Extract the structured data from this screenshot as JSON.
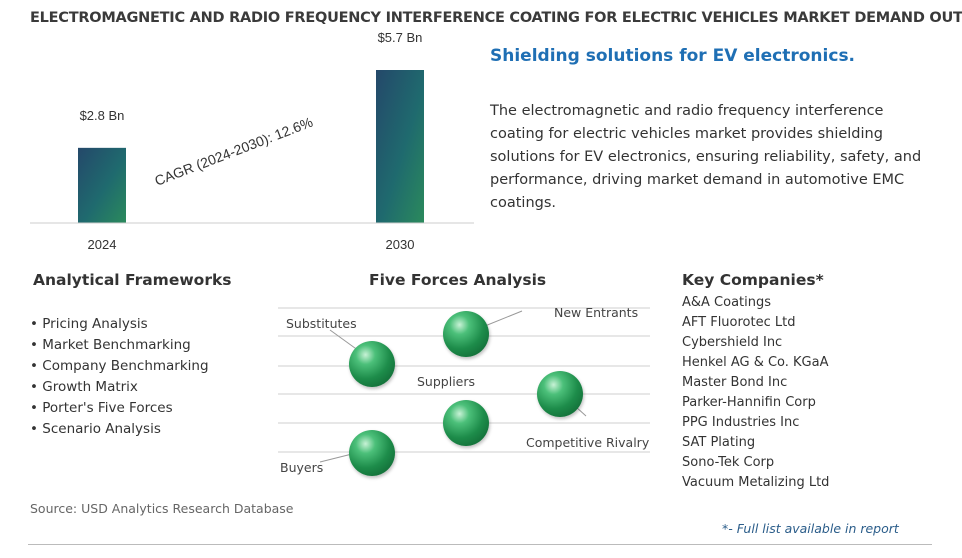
{
  "title": "ELECTROMAGNETIC AND RADIO FREQUENCY INTERFERENCE COATING FOR ELECTRIC VEHICLES MARKET DEMAND OUTLOOK",
  "chart_data": {
    "type": "bar",
    "categories": [
      "2024",
      "2030"
    ],
    "values": [
      2.8,
      5.7
    ],
    "value_labels": [
      "$2.8 Bn",
      "$5.7 Bn"
    ],
    "annotation": "CAGR (2024-2030):  12.6%",
    "bar_color": "#1f5a6e"
  },
  "summary": {
    "heading": "Shielding solutions for EV electronics.",
    "text": "The electromagnetic and radio frequency interference coating for electric vehicles market provides shielding solutions for EV electronics, ensuring reliability, safety, and performance, driving market demand in automotive EMC coatings."
  },
  "frameworks": {
    "heading": "Analytical Frameworks",
    "items": [
      "Pricing Analysis",
      "Market Benchmarking",
      "Company Benchmarking",
      "Growth Matrix",
      "Porter's Five Forces",
      "Scenario Analysis"
    ]
  },
  "five_forces": {
    "heading": "Five Forces Analysis",
    "substitutes": "Substitutes",
    "new_entrants": "New Entrants",
    "suppliers": "Suppliers",
    "competitive_rivalry": "Competitive Rivalry",
    "buyers": "Buyers"
  },
  "companies": {
    "heading": "Key Companies*",
    "items": [
      "A&A Coatings",
      "AFT Fluorotec Ltd",
      "Cybershield Inc",
      "Henkel AG & Co. KGaA",
      "Master Bond Inc",
      "Parker-Hannifin Corp",
      "PPG Industries Inc",
      "SAT Plating",
      "Sono-Tek Corp",
      "Vacuum Metalizing Ltd"
    ]
  },
  "source": "Source: USD Analytics Research Database",
  "footnote": "*- Full list available in report"
}
